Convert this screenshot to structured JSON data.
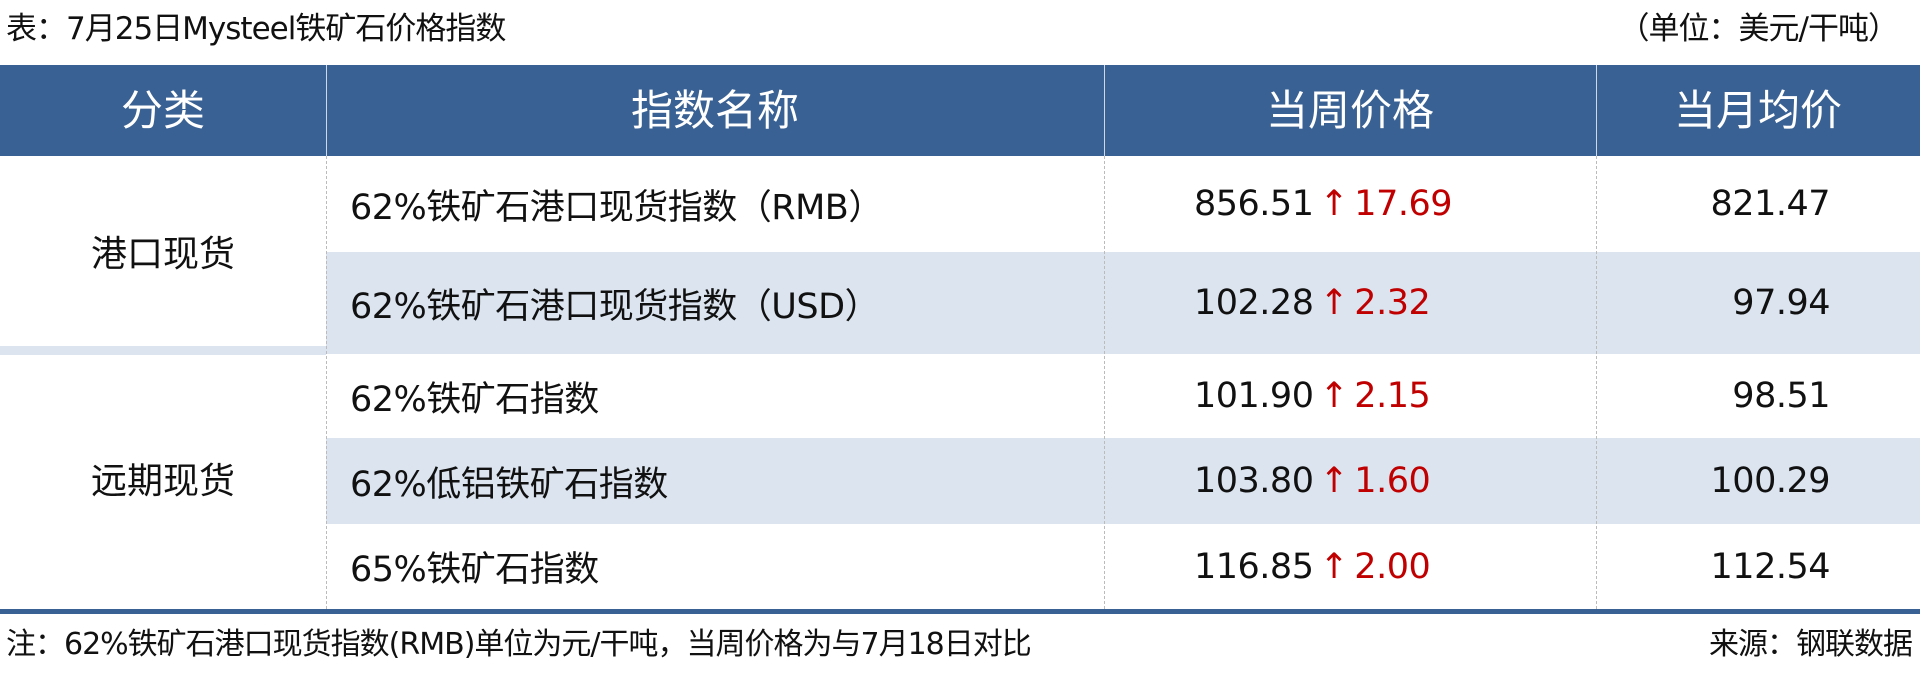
{
  "title": "表：7月25日Mysteel铁矿石价格指数",
  "unit": "（单位：美元/干吨）",
  "columns": [
    "分类",
    "指数名称",
    "当周价格",
    "当月均价"
  ],
  "categories": [
    "港口现货",
    "远期现货"
  ],
  "rows": [
    {
      "name": "62%铁矿石港口现货指数（RMB）",
      "price": "856.51",
      "arrow": "↑",
      "change": "17.69",
      "avg": "821.47"
    },
    {
      "name": "62%铁矿石港口现货指数（USD）",
      "price": "102.28",
      "arrow": "↑",
      "change": "2.32",
      "avg": "97.94"
    },
    {
      "name": "62%铁矿石指数",
      "price": "101.90",
      "arrow": "↑",
      "change": "2.15",
      "avg": "98.51"
    },
    {
      "name": "62%低铝铁矿石指数",
      "price": "103.80",
      "arrow": "↑",
      "change": "1.60",
      "avg": "100.29"
    },
    {
      "name": "65%铁矿石指数",
      "price": "116.85",
      "arrow": "↑",
      "change": "2.00",
      "avg": "112.54"
    }
  ],
  "note": "注：62%铁矿石港口现货指数(RMB)单位为元/干吨，当周价格为与7月18日对比",
  "source": "来源：钢联数据",
  "colors": {
    "header": "#3a6193",
    "shade": "#dbe4ef",
    "up": "#c00000"
  }
}
